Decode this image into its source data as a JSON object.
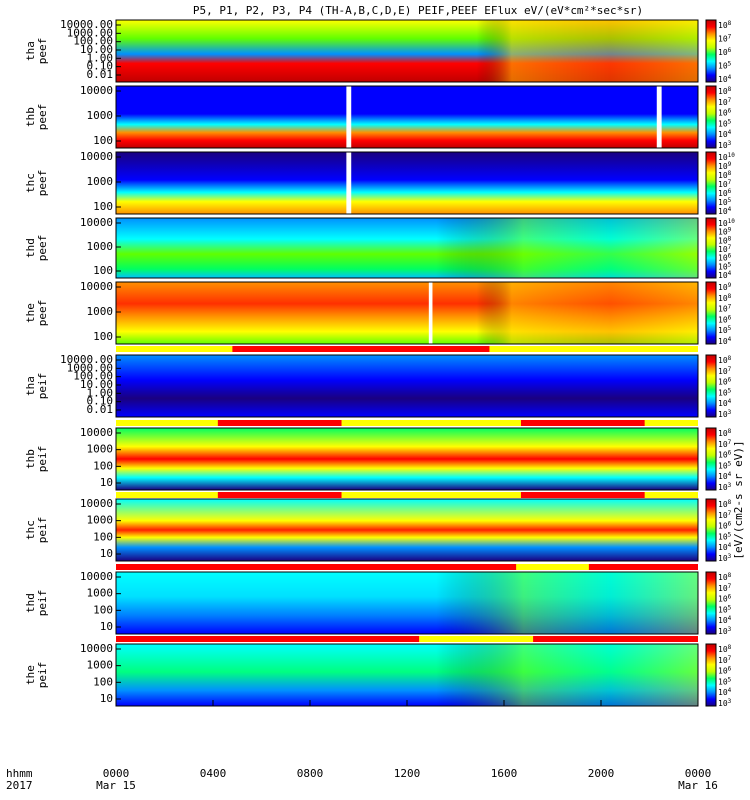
{
  "chart_data": {
    "type": "heatmap",
    "title": "P5, P1, P2, P3, P4 (TH-A,B,C,D,E) PEIF,PEEF EFlux eV/(eV*cm²*sec*sr)",
    "colorbar_label": "[eV/(cm2-s sr eV)]",
    "colorbar_label_edges": "eV/(cm^2-sec-sr-eV)",
    "xlabel_lines": [
      "hhmm",
      "2017"
    ],
    "x_ticks": [
      {
        "t": 0,
        "lines": [
          "0000",
          "Mar 15"
        ]
      },
      {
        "t": 4,
        "lines": [
          "0400",
          ""
        ]
      },
      {
        "t": 8,
        "lines": [
          "0800",
          ""
        ]
      },
      {
        "t": 12,
        "lines": [
          "1200",
          ""
        ]
      },
      {
        "t": 16,
        "lines": [
          "1600",
          ""
        ]
      },
      {
        "t": 20,
        "lines": [
          "2000",
          ""
        ]
      },
      {
        "t": 24,
        "lines": [
          "0000",
          "Mar 16"
        ]
      }
    ],
    "panels": [
      {
        "probe": "tha",
        "product": "peef",
        "yticks": [
          "10000.00",
          "1000.00",
          "100.00",
          "10.00",
          "1.00",
          "0.10",
          "0.01"
        ],
        "cbar_min_exp": 4,
        "cbar_max_exp": 8
      },
      {
        "probe": "thb",
        "product": "peef",
        "yticks": [
          "10000",
          "1000",
          "100"
        ],
        "cbar_min_exp": 3,
        "cbar_max_exp": 8
      },
      {
        "probe": "thc",
        "product": "peef",
        "yticks": [
          "10000",
          "1000",
          "100"
        ],
        "cbar_min_exp": 4,
        "cbar_max_exp": 10
      },
      {
        "probe": "thd",
        "product": "peef",
        "yticks": [
          "10000",
          "1000",
          "100"
        ],
        "cbar_min_exp": 4,
        "cbar_max_exp": 10
      },
      {
        "probe": "the",
        "product": "peef",
        "yticks": [
          "10000",
          "1000",
          "100"
        ],
        "cbar_min_exp": 4,
        "cbar_max_exp": 9
      },
      {
        "probe": "tha",
        "product": "peif",
        "yticks": [
          "10000.00",
          "1000.00",
          "100.00",
          "10.00",
          "1.00",
          "0.10",
          "0.01"
        ],
        "cbar_min_exp": 3,
        "cbar_max_exp": 8
      },
      {
        "probe": "thb",
        "product": "peif",
        "yticks": [
          "10000",
          "1000",
          "100",
          "10"
        ],
        "cbar_min_exp": 3,
        "cbar_max_exp": 8
      },
      {
        "probe": "thc",
        "product": "peif",
        "yticks": [
          "10000",
          "1000",
          "100",
          "10"
        ],
        "cbar_min_exp": 3,
        "cbar_max_exp": 8
      },
      {
        "probe": "thd",
        "product": "peif",
        "yticks": [
          "10000",
          "1000",
          "100",
          "10"
        ],
        "cbar_min_exp": 3,
        "cbar_max_exp": 8
      },
      {
        "probe": "the",
        "product": "peif",
        "yticks": [
          "10000",
          "1000",
          "100",
          "10"
        ],
        "cbar_min_exp": 3,
        "cbar_max_exp": 8
      }
    ],
    "mode_bars": [
      {
        "after_panel": 4,
        "red_hours": [
          [
            4.8,
            15.4
          ]
        ]
      },
      {
        "after_panel": 5,
        "red_hours": [
          [
            4.2,
            9.3
          ],
          [
            16.7,
            21.8
          ]
        ]
      },
      {
        "after_panel": 6,
        "red_hours": [
          [
            4.2,
            9.3
          ],
          [
            16.7,
            21.8
          ]
        ]
      },
      {
        "after_panel": 7,
        "red_hours": [
          [
            0,
            16.5
          ],
          [
            19.5,
            24
          ]
        ]
      },
      {
        "after_panel": 8,
        "red_hours": [
          [
            0,
            12.5
          ],
          [
            17.2,
            24
          ]
        ]
      }
    ],
    "data_gaps_hours": [
      {
        "panel": 1,
        "hours": [
          [
            9.5,
            9.7
          ],
          [
            22.3,
            22.5
          ]
        ]
      },
      {
        "panel": 2,
        "hours": [
          [
            9.5,
            9.7
          ]
        ]
      },
      {
        "panel": 4,
        "hours": [
          [
            12.9,
            13.05
          ]
        ]
      }
    ],
    "colormap": [
      "#1a0080",
      "#0000ff",
      "#0090ff",
      "#00ffff",
      "#00ff60",
      "#c0ff00",
      "#ffff00",
      "#ff9000",
      "#ff0000",
      "#c00000"
    ],
    "x_range_hours": [
      0,
      24
    ]
  }
}
